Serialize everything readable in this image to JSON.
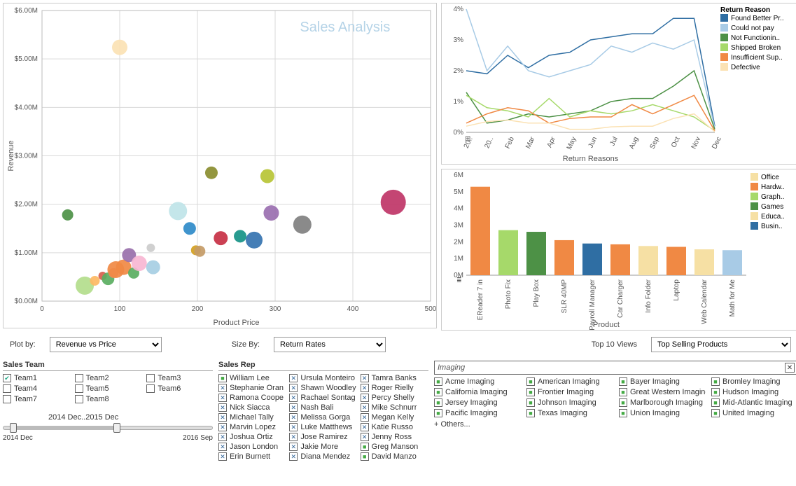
{
  "scatter": {
    "title": "Sales Analysis",
    "xlabel": "Product Price",
    "ylabel": "Revenue",
    "xlim": [
      0,
      500
    ],
    "xtick_step": 100,
    "ylim": [
      0,
      6000000
    ],
    "ytick_step": 1000000,
    "ytick_format": "${v}M",
    "background": "#ffffff",
    "grid_color": "#d9d9d9",
    "points": [
      {
        "x": 33,
        "y": 1780000,
        "r": 8,
        "c": "#4d9146"
      },
      {
        "x": 55,
        "y": 320000,
        "r": 13,
        "c": "#b3dd8c"
      },
      {
        "x": 68,
        "y": 420000,
        "r": 7,
        "c": "#fdb863"
      },
      {
        "x": 78,
        "y": 520000,
        "r": 6,
        "c": "#d6604d"
      },
      {
        "x": 85,
        "y": 460000,
        "r": 9,
        "c": "#5aae61"
      },
      {
        "x": 92,
        "y": 580000,
        "r": 7,
        "c": "#ef8a62"
      },
      {
        "x": 95,
        "y": 650000,
        "r": 12,
        "c": "#f08944"
      },
      {
        "x": 100,
        "y": 5240000,
        "r": 11,
        "c": "#fbe2b4"
      },
      {
        "x": 105,
        "y": 700000,
        "r": 11,
        "c": "#f08944"
      },
      {
        "x": 112,
        "y": 950000,
        "r": 10,
        "c": "#9970ab"
      },
      {
        "x": 118,
        "y": 580000,
        "r": 8,
        "c": "#5aae61"
      },
      {
        "x": 125,
        "y": 780000,
        "r": 11,
        "c": "#f7b6d2"
      },
      {
        "x": 140,
        "y": 1100000,
        "r": 6,
        "c": "#cccccc"
      },
      {
        "x": 143,
        "y": 700000,
        "r": 10,
        "c": "#a6cee3"
      },
      {
        "x": 175,
        "y": 1860000,
        "r": 13,
        "c": "#bfe4e8"
      },
      {
        "x": 190,
        "y": 1500000,
        "r": 9,
        "c": "#2f8bc9"
      },
      {
        "x": 198,
        "y": 1050000,
        "r": 7,
        "c": "#d3a021"
      },
      {
        "x": 203,
        "y": 1030000,
        "r": 8,
        "c": "#c49b67"
      },
      {
        "x": 218,
        "y": 2650000,
        "r": 9,
        "c": "#8a8d2f"
      },
      {
        "x": 230,
        "y": 1300000,
        "r": 10,
        "c": "#c73044"
      },
      {
        "x": 255,
        "y": 1340000,
        "r": 9,
        "c": "#169387"
      },
      {
        "x": 273,
        "y": 1260000,
        "r": 12,
        "c": "#3573b0"
      },
      {
        "x": 290,
        "y": 2580000,
        "r": 10,
        "c": "#b7c435"
      },
      {
        "x": 295,
        "y": 1820000,
        "r": 11,
        "c": "#9a6fb0"
      },
      {
        "x": 335,
        "y": 1580000,
        "r": 13,
        "c": "#808080"
      },
      {
        "x": 452,
        "y": 2040000,
        "r": 18,
        "c": "#bf3567"
      }
    ]
  },
  "line": {
    "xlabel": "Return Reasons",
    "ylim": [
      0,
      4
    ],
    "ytick_step": 1,
    "ytick_suffix": "%",
    "xcats": [
      "20..",
      "20..",
      "Feb",
      "Mar",
      "Apr",
      "May",
      "Jun",
      "Jul",
      "Aug",
      "Sep",
      "Oct",
      "Nov",
      "Dec"
    ],
    "legend_title": "Return Reason",
    "series": [
      {
        "name": "Found Better Pr..",
        "color": "#2f6ea3",
        "y": [
          2.0,
          1.9,
          2.5,
          2.1,
          2.5,
          2.6,
          3.0,
          3.1,
          3.2,
          3.2,
          3.7,
          3.7,
          0.2
        ]
      },
      {
        "name": "Could not pay",
        "color": "#a8cbe6",
        "y": [
          4.0,
          2.0,
          2.8,
          2.0,
          1.8,
          2.0,
          2.2,
          2.8,
          2.6,
          2.9,
          2.7,
          3.0,
          0.15
        ]
      },
      {
        "name": "Not Functionin..",
        "color": "#4d9146",
        "y": [
          1.3,
          0.3,
          0.4,
          0.6,
          0.5,
          0.6,
          0.7,
          1.0,
          1.1,
          1.1,
          1.5,
          2.0,
          0.1
        ]
      },
      {
        "name": "Shipped Broken",
        "color": "#a6d96a",
        "y": [
          1.2,
          0.8,
          0.7,
          0.5,
          1.1,
          0.5,
          0.7,
          0.6,
          0.7,
          0.9,
          0.7,
          0.5,
          0.05
        ]
      },
      {
        "name": "Insufficient Sup..",
        "color": "#f08944",
        "y": [
          0.3,
          0.6,
          0.8,
          0.7,
          0.3,
          0.45,
          0.5,
          0.5,
          0.9,
          0.6,
          0.9,
          1.2,
          0.05
        ]
      },
      {
        "name": "Defective",
        "color": "#fbe2b4",
        "y": [
          0.2,
          0.35,
          0.4,
          0.3,
          0.3,
          0.1,
          0.1,
          0.18,
          0.2,
          0.2,
          0.45,
          0.6,
          0.02
        ]
      }
    ]
  },
  "bar": {
    "xlabel": "Product",
    "ylim": [
      0,
      6000000
    ],
    "ytick_step": 1000000,
    "ytick_format": "{v}M",
    "legend": [
      {
        "name": "Office",
        "c": "#f6e0a4"
      },
      {
        "name": "Hardw..",
        "c": "#f08944"
      },
      {
        "name": "Graph..",
        "c": "#a6d96a"
      },
      {
        "name": "Games",
        "c": "#4d9146"
      },
      {
        "name": "Educa..",
        "c": "#f6e0a4"
      },
      {
        "name": "Busin..",
        "c": "#2f6ea3"
      }
    ],
    "bars": [
      {
        "label": "EReader 7 in",
        "v": 5300000,
        "c": "#f08944"
      },
      {
        "label": "Photo Fix",
        "v": 2700000,
        "c": "#a6d96a"
      },
      {
        "label": "Play Box",
        "v": 2600000,
        "c": "#4d9146"
      },
      {
        "label": "SLR 40MP",
        "v": 2100000,
        "c": "#f08944"
      },
      {
        "label": "Payroll Manager",
        "v": 1900000,
        "c": "#2f6ea3"
      },
      {
        "label": "Car Charger",
        "v": 1850000,
        "c": "#f08944"
      },
      {
        "label": "Info Folder",
        "v": 1750000,
        "c": "#f6e0a4"
      },
      {
        "label": "Laptop",
        "v": 1700000,
        "c": "#f08944"
      },
      {
        "label": "Web Calendar",
        "v": 1550000,
        "c": "#f6e0a4"
      },
      {
        "label": "Math for Me",
        "v": 1500000,
        "c": "#a8cbe6"
      }
    ]
  },
  "controls": {
    "plot_by_label": "Plot by:",
    "plot_by_value": "Revenue vs Price",
    "size_by_label": "Size By:",
    "size_by_value": "Return Rates",
    "top10_label": "Top 10 Views",
    "top10_value": "Top Selling Products"
  },
  "sales_team": {
    "title": "Sales Team",
    "items": [
      {
        "label": "Team1",
        "checked": true
      },
      {
        "label": "Team2",
        "checked": false
      },
      {
        "label": "Team3",
        "checked": false
      },
      {
        "label": "Team4",
        "checked": false
      },
      {
        "label": "Team5",
        "checked": false
      },
      {
        "label": "Team6",
        "checked": false
      },
      {
        "label": "Team7",
        "checked": false
      },
      {
        "label": "Team8",
        "checked": false
      }
    ]
  },
  "sales_rep": {
    "title": "Sales Rep",
    "items": [
      {
        "label": "William Lee",
        "style": "g"
      },
      {
        "label": "Ursula Monteiro",
        "style": "x"
      },
      {
        "label": "Tamra Banks",
        "style": "x"
      },
      {
        "label": "Stephanie Oran",
        "style": "x"
      },
      {
        "label": "Shawn Woodley",
        "style": "x"
      },
      {
        "label": "Roger Rielly",
        "style": "x"
      },
      {
        "label": "Ramona Coope",
        "style": "x"
      },
      {
        "label": "Rachael Sontag",
        "style": "x"
      },
      {
        "label": "Percy Shelly",
        "style": "x"
      },
      {
        "label": "Nick Siacca",
        "style": "x"
      },
      {
        "label": "Nash Bali",
        "style": "x"
      },
      {
        "label": "Mike Schnurr",
        "style": "x"
      },
      {
        "label": "Michael Tally",
        "style": "x"
      },
      {
        "label": "Melissa Gorga",
        "style": "x"
      },
      {
        "label": "Megan Kelly",
        "style": "x"
      },
      {
        "label": "Marvin Lopez",
        "style": "x"
      },
      {
        "label": "Luke Matthews",
        "style": "x"
      },
      {
        "label": "Katie Russo",
        "style": "x"
      },
      {
        "label": "Joshua Ortiz",
        "style": "x"
      },
      {
        "label": "Jose Ramirez",
        "style": "x"
      },
      {
        "label": "Jenny Ross",
        "style": "x"
      },
      {
        "label": "Jason London",
        "style": "x"
      },
      {
        "label": "Jakie More",
        "style": "x"
      },
      {
        "label": "Greg Manson",
        "style": "g"
      },
      {
        "label": "Erin Burnett",
        "style": "x"
      },
      {
        "label": "Diana Mendez",
        "style": "x"
      },
      {
        "label": "David Manzo",
        "style": "g"
      }
    ]
  },
  "slider": {
    "range_label": "2014 Dec..2015 Dec",
    "start": "2014 Dec",
    "end": "2016 Sep"
  },
  "imaging": {
    "search_value": "Imaging",
    "items": [
      "Acme Imaging",
      "American Imaging",
      "Bayer Imaging",
      "Bromley Imaging",
      "California Imaging",
      "Frontier Imaging",
      "Great Western Imaging",
      "Hudson Imaging",
      "Jersey Imaging",
      "Johnson Imaging",
      "Marlborough Imaging",
      "Mid-Atlantic Imaging",
      "Pacific Imaging",
      "Texas Imaging",
      "Union Imaging",
      "United Imaging"
    ],
    "others": "+  Others..."
  }
}
